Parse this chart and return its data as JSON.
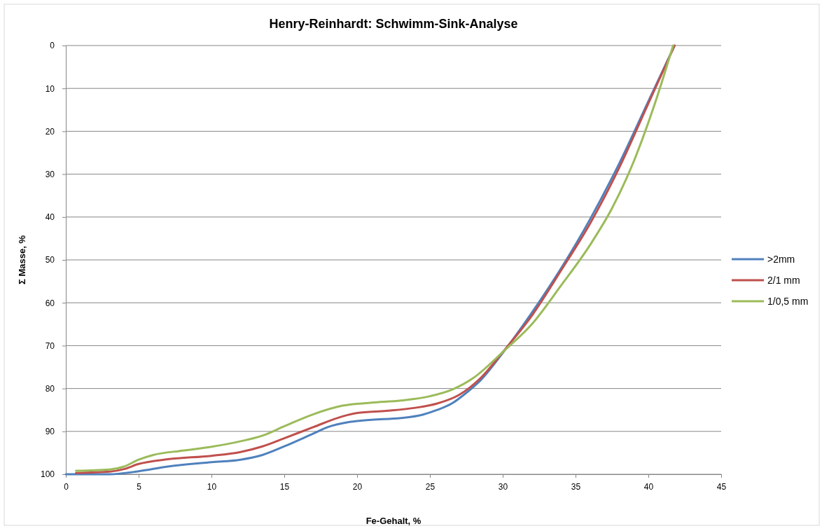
{
  "chart_data": {
    "type": "line",
    "title": "Henry-Reinhardt: Schwimm-Sink-Analyse",
    "xlabel": "Fe-Gehalt, %",
    "ylabel": "Σ Masse, %",
    "xlim": [
      0,
      45
    ],
    "xticks": [
      0,
      5,
      10,
      15,
      20,
      25,
      30,
      35,
      40,
      45
    ],
    "ylim": [
      100,
      0
    ],
    "yticks": [
      0,
      10,
      20,
      30,
      40,
      50,
      60,
      70,
      80,
      90,
      100
    ],
    "grid": "y",
    "legend": "right",
    "marker": "none",
    "line_style": "solid",
    "series": [
      {
        "name": ">2mm",
        "color": "#4f81bd",
        "x": [
          0,
          3,
          5,
          7,
          10,
          12,
          13.5,
          15,
          17,
          18,
          19.5,
          21,
          23,
          24.5,
          25.5,
          26.5,
          27.5,
          28.5,
          30,
          32,
          34,
          36,
          38,
          40,
          41.8
        ],
        "values": [
          100,
          100,
          99.3,
          98.2,
          97.2,
          96.6,
          95.5,
          93.5,
          90.5,
          89,
          87.8,
          87.3,
          86.9,
          86.1,
          85,
          83.5,
          81,
          78,
          71.7,
          62.3,
          52,
          40.5,
          27.5,
          13,
          0
        ]
      },
      {
        "name": "2/1 mm",
        "color": "#c0504d",
        "x": [
          0.7,
          3,
          4,
          5,
          7,
          10,
          12,
          13.5,
          15,
          17,
          19,
          20,
          22,
          24,
          25.5,
          27,
          28.5,
          30,
          32,
          34,
          36,
          38,
          40,
          41.8
        ],
        "values": [
          99.7,
          99.4,
          98.8,
          97.6,
          96.5,
          95.7,
          94.8,
          93.5,
          91.6,
          89,
          86.5,
          85.7,
          85.2,
          84.5,
          83.5,
          81.5,
          77.5,
          71.5,
          63,
          52.5,
          41.5,
          28.5,
          13.5,
          0
        ]
      },
      {
        "name": "1/0,5 mm",
        "color": "#9bbb59",
        "x": [
          0.7,
          3,
          4,
          5,
          6,
          8,
          10,
          12,
          13.5,
          15,
          17,
          19,
          21,
          23,
          25,
          26.5,
          28,
          30,
          32,
          34,
          36,
          37.5,
          39,
          40.5,
          41.7
        ],
        "values": [
          99.2,
          98.9,
          98.2,
          96.6,
          95.5,
          94.5,
          93.6,
          92.3,
          91,
          88.8,
          86,
          84,
          83.3,
          82.8,
          81.8,
          80.3,
          77.5,
          71.5,
          65,
          56,
          46.5,
          38,
          27,
          13,
          0
        ]
      }
    ]
  }
}
